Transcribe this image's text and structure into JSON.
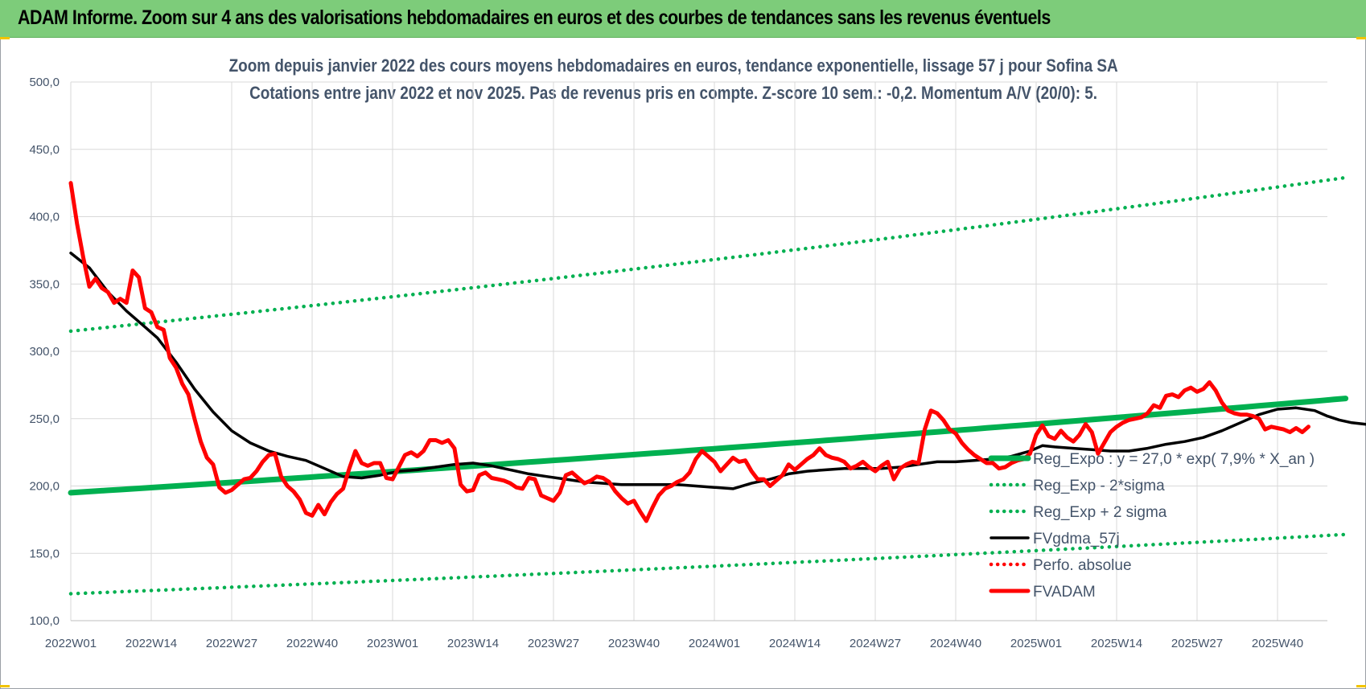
{
  "banner": {
    "title": "ADAM Informe. Zoom sur 4 ans des valorisations hebdomadaires en euros et des courbes de tendances sans les revenus éventuels"
  },
  "colors": {
    "banner_bg": "#7dcc7a",
    "trend": "#00b050",
    "fv_adam": "#ff0000",
    "smooth": "#000000",
    "text": "#44546a",
    "grid": "#d9d9d9"
  },
  "chart_data": {
    "type": "line",
    "title": "Zoom depuis janvier 2022 des cours moyens hebdomadaires en euros, tendance exponentielle, lissage 57 j pour Sofina SA",
    "subtitle": "Cotations entre janv 2022 et nov 2025. Pas de revenus pris en compte. Z-score 10 sem.: -0,2. Momentum A/V (20/0): 5.",
    "xlabel": "",
    "ylabel": "",
    "ylim": [
      100,
      500
    ],
    "yticks": [
      100,
      150,
      200,
      250,
      300,
      350,
      400,
      450,
      500
    ],
    "ytick_labels": [
      "100,0",
      "150,0",
      "200,0",
      "250,0",
      "300,0",
      "350,0",
      "400,0",
      "450,0",
      "500,0"
    ],
    "xtick_labels": [
      "2022W01",
      "2022W14",
      "2022W27",
      "2022W40",
      "2023W01",
      "2023W14",
      "2023W27",
      "2023W40",
      "2024W01",
      "2024W14",
      "2024W27",
      "2024W40",
      "2025W01",
      "2025W14",
      "2025W27",
      "2025W40"
    ],
    "weeks_between_ticks": 13,
    "n_weeks": 206,
    "grid": true,
    "legend_position": "right",
    "series": [
      {
        "name": "Reg_Expo : y = 27,0 * exp( 7,9% *  X_an )",
        "style": "solid-thick",
        "color": "#00b050",
        "start": 195,
        "end": 265
      },
      {
        "name": "Reg_Exp - 2*sigma",
        "style": "dotted",
        "color": "#00b050",
        "start": 120,
        "end": 164
      },
      {
        "name": "Reg_Exp + 2 sigma",
        "style": "dotted",
        "color": "#00b050",
        "start": 315,
        "end": 429
      },
      {
        "name": "FVgdma_57j",
        "style": "solid",
        "color": "#000000",
        "points": [
          [
            0,
            373
          ],
          [
            3,
            362
          ],
          [
            6,
            344
          ],
          [
            9,
            330
          ],
          [
            12,
            318
          ],
          [
            14,
            310
          ],
          [
            17,
            292
          ],
          [
            20,
            272
          ],
          [
            23,
            255
          ],
          [
            26,
            241
          ],
          [
            29,
            232
          ],
          [
            32,
            226
          ],
          [
            35,
            222
          ],
          [
            38,
            219
          ],
          [
            41,
            213
          ],
          [
            44,
            207
          ],
          [
            47,
            206
          ],
          [
            50,
            208
          ],
          [
            53,
            211
          ],
          [
            56,
            212
          ],
          [
            59,
            214
          ],
          [
            62,
            216
          ],
          [
            65,
            217
          ],
          [
            68,
            215
          ],
          [
            71,
            212
          ],
          [
            74,
            209
          ],
          [
            77,
            207
          ],
          [
            80,
            205
          ],
          [
            83,
            203
          ],
          [
            86,
            202
          ],
          [
            89,
            201
          ],
          [
            92,
            201
          ],
          [
            95,
            201
          ],
          [
            98,
            201
          ],
          [
            101,
            200
          ],
          [
            104,
            199
          ],
          [
            107,
            198
          ],
          [
            110,
            202
          ],
          [
            113,
            205
          ],
          [
            116,
            209
          ],
          [
            119,
            211
          ],
          [
            122,
            212
          ],
          [
            125,
            213
          ],
          [
            128,
            213
          ],
          [
            131,
            213
          ],
          [
            134,
            214
          ],
          [
            137,
            216
          ],
          [
            140,
            218
          ],
          [
            143,
            218
          ],
          [
            146,
            219
          ],
          [
            149,
            220
          ],
          [
            152,
            222
          ],
          [
            155,
            226
          ],
          [
            157,
            230
          ],
          [
            159,
            229
          ],
          [
            162,
            228
          ],
          [
            165,
            227
          ],
          [
            168,
            226
          ],
          [
            171,
            226
          ],
          [
            174,
            228
          ],
          [
            177,
            231
          ],
          [
            180,
            233
          ],
          [
            183,
            236
          ],
          [
            186,
            241
          ],
          [
            189,
            247
          ],
          [
            192,
            253
          ],
          [
            195,
            257
          ],
          [
            198,
            258
          ],
          [
            201,
            256
          ],
          [
            203,
            252
          ],
          [
            205,
            249
          ],
          [
            207,
            247
          ],
          [
            209,
            246
          ],
          [
            211,
            245
          ]
        ]
      },
      {
        "name": "Perfo. absolue",
        "style": "dotted",
        "color": "#ff0000",
        "points": []
      },
      {
        "name": "FVADAM",
        "style": "solid-thick",
        "color": "#ff0000",
        "points": [
          [
            0,
            425
          ],
          [
            1,
            395
          ],
          [
            2,
            370
          ],
          [
            3,
            348
          ],
          [
            4,
            354
          ],
          [
            5,
            347
          ],
          [
            6,
            344
          ],
          [
            7,
            336
          ],
          [
            8,
            339
          ],
          [
            9,
            336
          ],
          [
            10,
            360
          ],
          [
            11,
            355
          ],
          [
            12,
            332
          ],
          [
            13,
            329
          ],
          [
            14,
            318
          ],
          [
            15,
            316
          ],
          [
            16,
            295
          ],
          [
            17,
            288
          ],
          [
            18,
            276
          ],
          [
            19,
            268
          ],
          [
            20,
            250
          ],
          [
            21,
            233
          ],
          [
            22,
            221
          ],
          [
            23,
            216
          ],
          [
            24,
            199
          ],
          [
            25,
            195
          ],
          [
            26,
            197
          ],
          [
            27,
            201
          ],
          [
            28,
            205
          ],
          [
            29,
            206
          ],
          [
            30,
            211
          ],
          [
            31,
            218
          ],
          [
            32,
            223
          ],
          [
            33,
            224
          ],
          [
            34,
            207
          ],
          [
            35,
            200
          ],
          [
            36,
            196
          ],
          [
            37,
            190
          ],
          [
            38,
            180
          ],
          [
            39,
            178
          ],
          [
            40,
            186
          ],
          [
            41,
            179
          ],
          [
            42,
            188
          ],
          [
            43,
            194
          ],
          [
            44,
            198
          ],
          [
            45,
            213
          ],
          [
            46,
            226
          ],
          [
            47,
            217
          ],
          [
            48,
            215
          ],
          [
            49,
            217
          ],
          [
            50,
            217
          ],
          [
            51,
            206
          ],
          [
            52,
            205
          ],
          [
            53,
            214
          ],
          [
            54,
            223
          ],
          [
            55,
            225
          ],
          [
            56,
            222
          ],
          [
            57,
            226
          ],
          [
            58,
            234
          ],
          [
            59,
            234
          ],
          [
            60,
            232
          ],
          [
            61,
            234
          ],
          [
            62,
            228
          ],
          [
            63,
            201
          ],
          [
            64,
            196
          ],
          [
            65,
            197
          ],
          [
            66,
            208
          ],
          [
            67,
            210
          ],
          [
            68,
            206
          ],
          [
            69,
            205
          ],
          [
            70,
            204
          ],
          [
            71,
            202
          ],
          [
            72,
            199
          ],
          [
            73,
            198
          ],
          [
            74,
            206
          ],
          [
            75,
            205
          ],
          [
            76,
            193
          ],
          [
            77,
            191
          ],
          [
            78,
            189
          ],
          [
            79,
            195
          ],
          [
            80,
            208
          ],
          [
            81,
            210
          ],
          [
            82,
            206
          ],
          [
            83,
            202
          ],
          [
            84,
            204
          ],
          [
            85,
            207
          ],
          [
            86,
            206
          ],
          [
            87,
            203
          ],
          [
            88,
            196
          ],
          [
            89,
            191
          ],
          [
            90,
            187
          ],
          [
            91,
            189
          ],
          [
            92,
            181
          ],
          [
            93,
            174
          ],
          [
            94,
            184
          ],
          [
            95,
            193
          ],
          [
            96,
            198
          ],
          [
            97,
            200
          ],
          [
            98,
            203
          ],
          [
            99,
            205
          ],
          [
            100,
            210
          ],
          [
            101,
            220
          ],
          [
            102,
            226
          ],
          [
            103,
            222
          ],
          [
            104,
            218
          ],
          [
            105,
            211
          ],
          [
            106,
            216
          ],
          [
            107,
            221
          ],
          [
            108,
            218
          ],
          [
            109,
            219
          ],
          [
            110,
            211
          ],
          [
            111,
            205
          ],
          [
            112,
            205
          ],
          [
            113,
            200
          ],
          [
            114,
            204
          ],
          [
            115,
            208
          ],
          [
            116,
            216
          ],
          [
            117,
            212
          ],
          [
            118,
            216
          ],
          [
            119,
            220
          ],
          [
            120,
            223
          ],
          [
            121,
            228
          ],
          [
            122,
            223
          ],
          [
            123,
            221
          ],
          [
            124,
            220
          ],
          [
            125,
            218
          ],
          [
            126,
            213
          ],
          [
            127,
            215
          ],
          [
            128,
            218
          ],
          [
            129,
            214
          ],
          [
            130,
            211
          ],
          [
            131,
            215
          ],
          [
            132,
            218
          ],
          [
            133,
            205
          ],
          [
            134,
            213
          ],
          [
            135,
            216
          ],
          [
            136,
            218
          ],
          [
            137,
            217
          ],
          [
            138,
            242
          ],
          [
            139,
            256
          ],
          [
            140,
            254
          ],
          [
            141,
            249
          ],
          [
            142,
            242
          ],
          [
            143,
            239
          ],
          [
            144,
            232
          ],
          [
            145,
            227
          ],
          [
            146,
            223
          ],
          [
            147,
            220
          ],
          [
            148,
            217
          ],
          [
            149,
            217
          ],
          [
            150,
            213
          ],
          [
            151,
            214
          ],
          [
            152,
            217
          ],
          [
            153,
            219
          ],
          [
            154,
            220
          ],
          [
            155,
            224
          ],
          [
            156,
            238
          ],
          [
            157,
            245
          ],
          [
            158,
            237
          ],
          [
            159,
            235
          ],
          [
            160,
            241
          ],
          [
            161,
            236
          ],
          [
            162,
            233
          ],
          [
            163,
            238
          ],
          [
            164,
            246
          ],
          [
            165,
            240
          ],
          [
            166,
            224
          ],
          [
            167,
            232
          ],
          [
            168,
            240
          ],
          [
            169,
            244
          ],
          [
            170,
            247
          ],
          [
            171,
            249
          ],
          [
            172,
            250
          ],
          [
            173,
            251
          ],
          [
            174,
            254
          ],
          [
            175,
            260
          ],
          [
            176,
            258
          ],
          [
            177,
            267
          ],
          [
            178,
            268
          ],
          [
            179,
            266
          ],
          [
            180,
            271
          ],
          [
            181,
            273
          ],
          [
            182,
            270
          ],
          [
            183,
            272
          ],
          [
            184,
            277
          ],
          [
            185,
            271
          ],
          [
            186,
            262
          ],
          [
            187,
            256
          ],
          [
            188,
            254
          ],
          [
            189,
            253
          ],
          [
            190,
            253
          ],
          [
            191,
            252
          ],
          [
            192,
            250
          ],
          [
            193,
            242
          ],
          [
            194,
            244
          ],
          [
            195,
            243
          ],
          [
            196,
            242
          ],
          [
            197,
            240
          ],
          [
            198,
            243
          ],
          [
            199,
            240
          ],
          [
            200,
            244
          ]
        ]
      }
    ]
  }
}
